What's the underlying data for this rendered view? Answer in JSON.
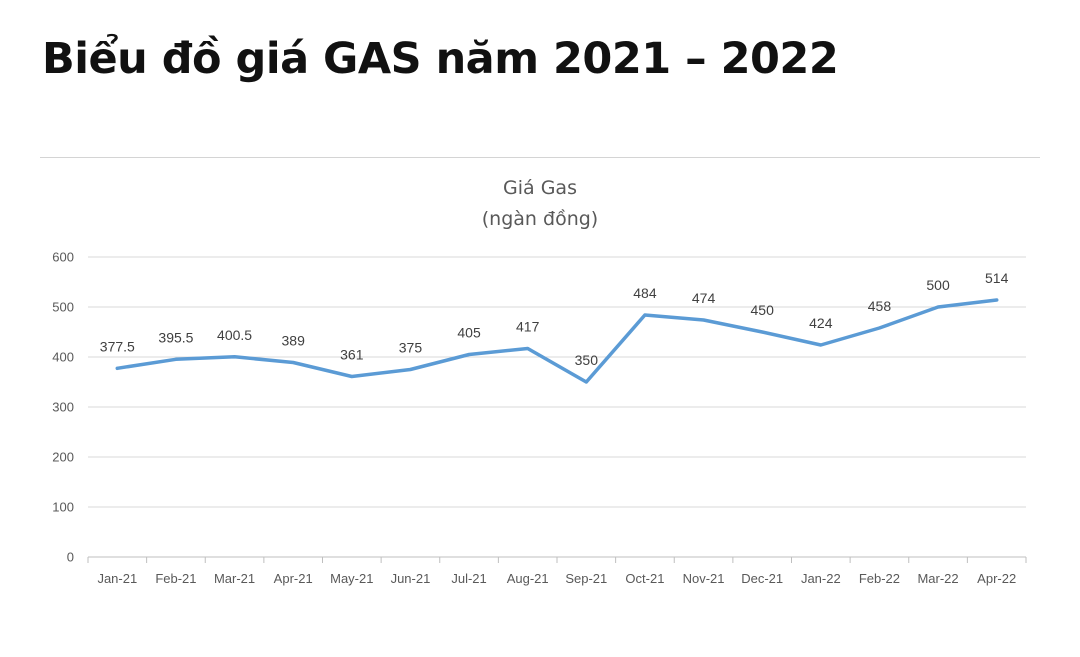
{
  "page": {
    "title": "Biểu đồ giá GAS năm 2021 – 2022"
  },
  "chart_data": {
    "type": "line",
    "title": "Giá Gas",
    "subtitle": "(ngàn đồng)",
    "xlabel": "",
    "ylabel": "",
    "categories": [
      "Jan-21",
      "Feb-21",
      "Mar-21",
      "Apr-21",
      "May-21",
      "Jun-21",
      "Jul-21",
      "Aug-21",
      "Sep-21",
      "Oct-21",
      "Nov-21",
      "Dec-21",
      "Jan-22",
      "Feb-22",
      "Mar-22",
      "Apr-22"
    ],
    "series": [
      {
        "values": [
          377.5,
          395.5,
          400.5,
          389,
          361,
          375,
          405,
          417,
          350,
          484,
          474,
          450,
          424,
          458,
          500,
          514
        ],
        "labels": [
          "377.5",
          "395.5",
          "400.5",
          "389",
          "361",
          "375",
          "405",
          "417",
          "350",
          "484",
          "474",
          "450",
          "424",
          "458",
          "500",
          "514"
        ],
        "color": "#5b9bd5"
      }
    ],
    "ylim": [
      0,
      600
    ],
    "yticks": [
      0,
      100,
      200,
      300,
      400,
      500,
      600
    ],
    "ytick_labels": [
      "0",
      "100",
      "200",
      "300",
      "400",
      "500",
      "600"
    ],
    "grid": true,
    "legend": "none"
  }
}
